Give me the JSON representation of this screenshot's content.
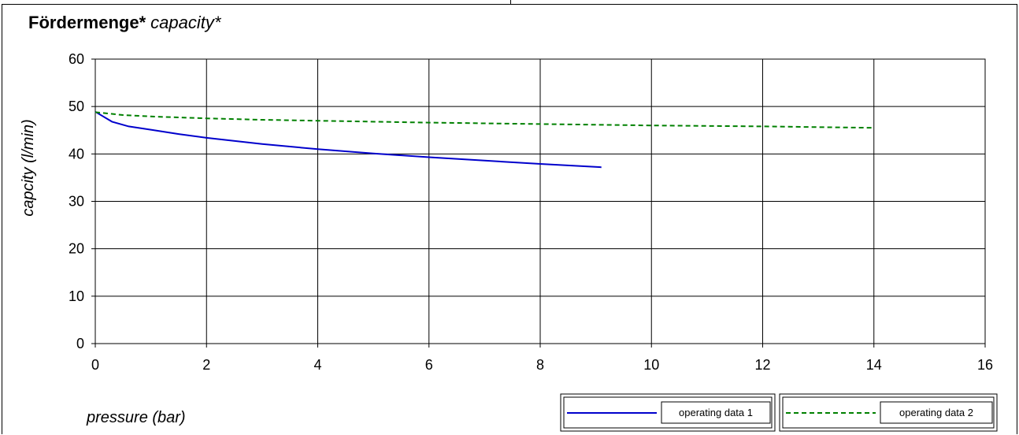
{
  "title": {
    "de": "Fördermenge*",
    "en": "capacity*"
  },
  "chart_data": {
    "type": "line",
    "xlabel": "pressure (bar)",
    "ylabel": "capcity (l/min)",
    "xlim": [
      0,
      16
    ],
    "ylim": [
      0,
      60
    ],
    "xticks": [
      0,
      2,
      4,
      6,
      8,
      10,
      12,
      14,
      16
    ],
    "yticks": [
      0,
      10,
      20,
      30,
      40,
      50,
      60
    ],
    "grid": true,
    "legend_position": "bottom-right",
    "series": [
      {
        "name": "operating data 1",
        "color": "#0000cc",
        "style": "solid",
        "x": [
          0,
          0.3,
          0.6,
          1,
          1.5,
          2,
          3,
          4,
          5,
          6,
          7,
          8,
          9.1
        ],
        "y": [
          48.9,
          46.8,
          45.8,
          45.1,
          44.2,
          43.4,
          42.1,
          41.0,
          40.1,
          39.3,
          38.6,
          37.9,
          37.2
        ]
      },
      {
        "name": "operating data 2",
        "color": "#008000",
        "style": "dashed",
        "x": [
          0,
          0.5,
          1,
          2,
          3,
          4,
          6,
          8,
          10,
          12,
          14
        ],
        "y": [
          48.8,
          48.2,
          47.9,
          47.5,
          47.2,
          47.0,
          46.6,
          46.3,
          46.0,
          45.8,
          45.5
        ]
      }
    ]
  }
}
